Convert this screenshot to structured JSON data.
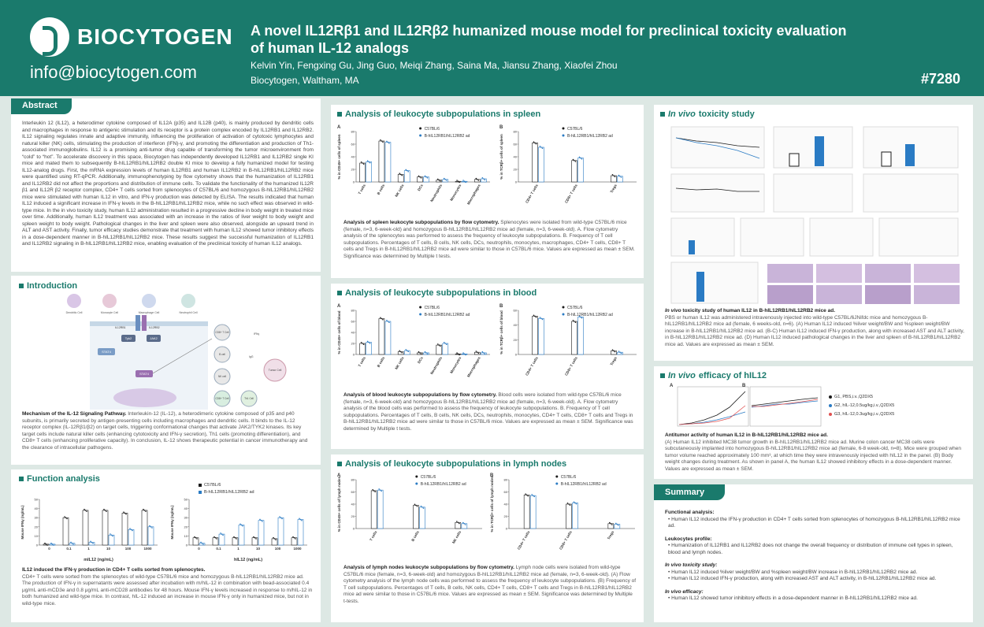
{
  "header": {
    "logo_text": "BIOCYTOGEN",
    "email": "info@biocytogen.com",
    "title": "A novel IL12Rβ1 and IL12Rβ2 humanized mouse model for preclinical toxicity evaluation of human IL-12 analogs",
    "authors": "Kelvin Yin, Fengxing Gu, Jing Guo, Meiqi Zhang, Saina Ma, Jiansu Zhang, Xiaofei Zhou",
    "affiliation": "Biocytogen, Waltham, MA",
    "poster_number": "#7280"
  },
  "colors": {
    "brand": "#1a7a6c",
    "wt": "#1a1a1a",
    "humanized": "#2a7bc4",
    "purple_tissue": "#c9b4d9"
  },
  "abstract": {
    "title": "Abstract",
    "text": "Interleukin 12 (IL12), a heterodimer cytokine composed of IL12A (p35) and IL12B (p40), is mainly produced by dendritic cells and macrophages in response to antigenic stimulation and its receptor is a protein complex encoded by IL12RB1 and IL12RB2. IL12 signaling regulates innate and adaptive immunity, influencing the proliferation of activation of cytotoxic lymphocytes and natural killer (NK) cells, stimulating the production of interferon (IFN)-γ, and promoting the differentiation and production of Th1-associated immunoglobulins. IL12 is a promising anti-tumor drug capable of transforming the tumor microenvironment from “cold” to “hot”. To accelerate discovery in this space, Biocytogen has independently developed IL12RB1 and IL12RB2 single KI mice and mated them to subsequently B-hIL12RB1/hIL12RB2 double KI mice to develop a fully humanized model for testing IL12-analog drugs. First, the mRNA expression levels of human IL12RB1 and human IL12RB2 in B-hIL12RB1/hIL12RB2 mice were quantified using RT-qPCR. Additionally, immunophenotyping by flow cytometry shows that the humanization of IL12RB1 and IL12RB2 did not affect the proportions and distribution of immune cells. To validate the functionality of the humanized IL12R β1 and IL12R β2 receptor complex, CD4+ T cells sorted from splenocytes of C57BL/6 and homozygous B-hIL12RB1/hIL12RB2 mice were stimulated with human IL12 in vitro, and IFN-γ production was detected by ELISA. The results indicated that human IL12 induced a significant increase in IFN-γ levels in the B-hIL12RB1/hIL12RB2 mice, while no such effect was observed in wild-type mice. In the in vivo toxicity study, human IL12 administration resulted in a progressive decline in body weight in treated mice over time. Additionally, human IL12 treatment was associated with an increase in the ratios of liver weight to body weight and spleen weight to body weight. Pathological changes in the liver and spleen were also observed, alongside an upward trend in ALT and AST activity. Finally, tumor efficacy studies demonstrate that treatment with human IL12 showed tumor inhibitory effects in a dose-dependent manner in B-hIL12RB1/hIL12RB2 mice. These results suggest the successful humanization of IL12RB1 and IL12RB2 signaling in B-hIL12RB1/hIL12RB2 mice, enabling evaluation of the preclinical toxicity of human IL12 analogs."
  },
  "introduction": {
    "title": "Introduction",
    "cells": [
      "Dendritic Cell",
      "Monocyte Cell",
      "Macrophage Cell",
      "Neutrophil Cell"
    ],
    "diagram_labels": [
      "IL12RB1",
      "IL12RB2",
      "Tyk2",
      "JAK2",
      "STAT4",
      "STAT4",
      "CD8+ T Cell",
      "B cell",
      "NK cell",
      "CD8+ T Cell",
      "Th1 Cell",
      "Tumor Cell",
      "IFNγ",
      "IgG"
    ],
    "caption_title": "Mechanism of the IL-12 Signaling Pathway.",
    "caption": " Interleukin-12 (IL-12), a heterodimeric cytokine composed of p35 and p40 subunits, is primarily secreted by antigen-presenting cells including macrophages and dendritic cells. It binds to the IL-12 receptor complex (IL-12Rβ1/β2) on target cells, triggering conformational changes that activate JAK2/TYK2 kinases. Its key target cells include natural killer cells (enhancing cytotoxicity and IFN-γ secretion), Th1 cells (promoting differentiation), and CD8+ T cells (enhancing proliferative capacity). In conclusion, IL-12 shows therapeutic potential in cancer immunotherapy and the clearance of intracellular pathogens."
  },
  "function": {
    "title": "Function analysis",
    "legend": [
      "C57BL/6",
      "B-hIL12RB1/hIL12RB2 ad"
    ],
    "ylabel": "Mouse IFNγ (ng/mL)",
    "xlabels": [
      "0",
      "0.1",
      "1",
      "10",
      "100",
      "1000"
    ],
    "chart_left_title": "mIL12 (ng/mL)",
    "chart_right_title": "hIL12 (ng/mL)",
    "caption_title": "IL12 induced the IFN-γ production in CD4+ T cells sorted from splenocytes.",
    "caption": "CD4+ T cells were sorted from the splenocytes of wild-type C57BL/6 mice and homozygous B-hIL12RB1/hIL12RB2 mice ad. The production of IFN-γ in supernatants were assessed after incubation with m/hIL-12 in combination with bead-associated 0.4 μg/mL anti-mCD3e and 0.8 μg/mL anti-mCD28 antibodies for 48 hours. Mouse IFN-γ levels increased in response to m/hIL-12 in both humanized and wild-type mice. In contrast, hIL-12 induced an increase in mouse IFN-γ only in humanized mice, but not in wild-type mice."
  },
  "spleen": {
    "title": "Analysis of leukocyte subpopulations in spleen",
    "caption_title": "Analysis of spleen leukocyte subpopulations by flow cytometry.",
    "caption": " Splenocytes were isolated from wild-type C57BL/6 mice (female, n=3, 6-week-old) and homozygous B-hIL12RB1/hIL12RB2 mice ad (female, n=3, 6-week-old). A. Flow cytometry analysis of the splenocytes was performed to assess the frequency of leukocyte subpopulations. B. Frequency of T cell subpopulations. Percentages of T cells, B cells, NK cells, DCs, neutrophils, monocytes, macrophages, CD4+ T cells, CD8+ T cells and Tregs in B-hIL12RB1/hIL12RB2 mice ad were similar to those in C57BL/6 mice. Values are expressed as mean ± SEM. Significance was determined by Multiple t tests."
  },
  "blood": {
    "title": "Analysis of leukocyte subpopulations in blood",
    "caption_title": "Analysis of blood leukocyte subpopulations by flow cytometry.",
    "caption": " Blood cells were isolated from wild-type C57BL/6 mice (female, n=3, 6-week-old) and homozygous B-hIL12RB1/hIL12RB2 mice ad (female, n=3, 6-week-old). A. Flow cytometry analysis of the blood cells was performed to assess the frequency of leukocyte subpopulations. B. Frequency of T cell subpopulations. Percentages of T cells, B cells, NK cells, DCs, neutrophils, monocytes, CD4+ T cells, CD8+ T cells and Tregs in B-hIL12RB1/hIL12RB2 mice ad were similar to those in C57BL/6 mice. Values are expressed as mean ± SEM. Significance was determined by Multiple t tests."
  },
  "lymph": {
    "title": "Analysis of leukocyte subpopulations in lymph nodes",
    "caption_title": "Analysis of lymph nodes leukocyte subpopulations by flow cytometry.",
    "caption": " Lymph node cells were isolated from wild-type C57BL/6 mice (female, n=3, 6-week-old) and homozygous B-hIL12RB1/hIL12RB2 mice ad (female, n=3, 6-week-old). (A) Flow cytometry analysis of the lymph node cells was performed to assess the frequency of leukocyte subpopulations. (B) Frequency of T cell subpopulations. Percentages of T cells, B cells, NK cells, CD4+ T cells, CD8+ T cells and Tregs in B-hIL12RB1/hIL12RB2 mice ad were similar to those in C57BL/6 mice. Values are expressed as mean ± SEM. Significance was determined by Multiple t-tests."
  },
  "toxicity": {
    "title_italic": "In vivo",
    "title_rest": " toxicity study",
    "caption_title_italic": "In vivo",
    "caption_title_rest": " toxicity study of human IL12 in B-hIL12RB1/hIL12RB2 mice ad.",
    "caption": "PBS or human IL12 was administered intravenously injected into wild-type C57BL/6JNifdc mice and homozygous B-hIL12RB1/hIL12RB2 mice ad (female, 6 weeks-old, n=6). (A) Human IL12 induced %liver weight/BW and %spleen weight/BW increase in B-hIL12RB1/hIL12RB2 mice ad. (B-C) Human IL12 induced IFN-γ production, along with increased AST and ALT activity, in B-hIL12RB1/hIL12RB2 mice ad. (D) Human IL12 induced pathological changes in the liver and spleen of B-hIL12RB1/hIL12RB2 mice ad. Values are expressed as mean ± SEM."
  },
  "efficacy": {
    "title_italic": "In vivo",
    "title_rest": " efficacy of hIL12",
    "legend": [
      "G1, PBS,i.v.,Q2DX5",
      "G2, hIL-12,0.5ug/kg,i.v.,Q2DX5",
      "G3, hIL-12,0.3ug/kg,i.v.,Q2DX5"
    ],
    "caption_title": "Antitumor activity of human IL12 in B-hIL12RB1/hIL12RB2 mice ad.",
    "caption": "(A) Human IL12 inhibited MC38 tumor growth in B-hIL12RB1/hIL12RB2 mice ad. Murine colon cancer MC38 cells were subcutaneously implanted into homozygous B-hIL12RB1/hIL12RB2 mice ad (female, 6-8 week-old, n=8). Mice were grouped when tumor volume reached approximately 100 mm³, at which time they were intravenously injected with hIL12 in the panel. (B) Body weight changes during treatment. As shown in panel A, the human IL12 showed inhibitory effects in a dose-dependent manner. Values are expressed as mean ± SEM."
  },
  "summary": {
    "title": "Summary",
    "sections": [
      {
        "heading": "Functional analysis:",
        "item": "Human IL12 induced the IFN-γ production in CD4+ T cells sorted from splenocytes of homozygous B-hIL12RB1/hIL12RB2 mice ad."
      },
      {
        "heading": "Leukocytes profile:",
        "item": "Humanization of IL12RB1 and IL12RB2 does not change the overall frequency or distribution of immune cell types in spleen, blood and lymph nodes."
      },
      {
        "heading": "In vivo toxicity study:",
        "item": "Human IL12 induced %liver weight/BW and %spleen weight/BW increase in B-hIL12RB1/hIL12RB2 mice ad.",
        "item2": "Human IL12 induced IFN-γ production, along with increased AST and ALT activity, in B-hIL12RB1/hIL12RB2 mice ad."
      },
      {
        "heading": "In vivo efficacy:",
        "item": "Human IL12 showed tumor inhibitory effects in a dose-dependent manner in B-hIL12RB1/hIL12RB2 mice ad."
      }
    ]
  },
  "chart_data": [
    {
      "id": "spleen_A",
      "type": "bar",
      "panel": "A",
      "ylabel": "% in CD45+ cells of spleen",
      "ylim": [
        0,
        80
      ],
      "yticks": [
        0,
        20,
        40,
        60,
        80
      ],
      "categories": [
        "T cells",
        "B cells",
        "NK cells",
        "DCs",
        "Neutrophils",
        "Monocytes",
        "Macrophages"
      ],
      "series": [
        {
          "name": "C57BL/6",
          "values": [
            30,
            65,
            12,
            8,
            3,
            1,
            4
          ]
        },
        {
          "name": "B-hIL12RB1/hIL12RB2 ad",
          "values": [
            32,
            63,
            18,
            8,
            4,
            1,
            5
          ]
        }
      ]
    },
    {
      "id": "spleen_B",
      "type": "bar",
      "panel": "B",
      "ylabel": "% in TCRβ+ cells of spleen",
      "ylim": [
        0,
        80
      ],
      "yticks": [
        0,
        20,
        40,
        60,
        80
      ],
      "categories": [
        "CD4+ T cells",
        "CD8+ T cells",
        "Tregs"
      ],
      "series": [
        {
          "name": "C57BL/6",
          "values": [
            62,
            34,
            10
          ]
        },
        {
          "name": "B-hIL12RB1/hIL12RB2 ad",
          "values": [
            55,
            38,
            9
          ]
        }
      ]
    },
    {
      "id": "blood_A",
      "type": "bar",
      "panel": "A",
      "ylabel": "% in CD45+ cells of blood",
      "ylim": [
        0,
        80
      ],
      "yticks": [
        0,
        20,
        40,
        60,
        80
      ],
      "categories": [
        "T cells",
        "B cells",
        "NK cells",
        "DCs",
        "Neutrophils",
        "Monocytes",
        "Macrophages"
      ],
      "series": [
        {
          "name": "C57BL/6",
          "values": [
            20,
            65,
            5,
            3,
            17,
            1,
            4
          ]
        },
        {
          "name": "B-hIL12RB1/hIL12RB2 ad",
          "values": [
            22,
            60,
            7,
            3,
            20,
            1,
            3
          ]
        }
      ]
    },
    {
      "id": "blood_B",
      "type": "bar",
      "panel": "B",
      "ylabel": "% in TCRβ+ cells of blood",
      "ylim": [
        0,
        60
      ],
      "yticks": [
        0,
        20,
        40,
        60
      ],
      "categories": [
        "CD4+ T cells",
        "CD8+ T cells",
        "Tregs"
      ],
      "series": [
        {
          "name": "C57BL/6",
          "values": [
            52,
            45,
            5
          ]
        },
        {
          "name": "B-hIL12RB1/hIL12RB2 ad",
          "values": [
            49,
            51,
            3
          ]
        }
      ]
    },
    {
      "id": "lymph_A",
      "type": "bar",
      "panel": "A",
      "ylabel": "% in CD45+ cells of lymph nodes",
      "ylim": [
        0,
        80
      ],
      "yticks": [
        0,
        20,
        40,
        60,
        80
      ],
      "categories": [
        "T cells",
        "B cells",
        "NK cells"
      ],
      "series": [
        {
          "name": "C57BL/6",
          "values": [
            62,
            38,
            10
          ]
        },
        {
          "name": "B-hIL12RB1/hIL12RB2 ad",
          "values": [
            63,
            35,
            8
          ]
        }
      ]
    },
    {
      "id": "lymph_B",
      "type": "bar",
      "panel": "B",
      "ylabel": "% in TCRβ+ cells of lymph nodes",
      "ylim": [
        0,
        80
      ],
      "yticks": [
        0,
        20,
        40,
        60,
        80
      ],
      "categories": [
        "CD4+ T cells",
        "CD8+ T cells",
        "Tregs"
      ],
      "series": [
        {
          "name": "C57BL/6",
          "values": [
            55,
            40,
            8
          ]
        },
        {
          "name": "B-hIL12RB1/hIL12RB2 ad",
          "values": [
            54,
            42,
            7
          ]
        }
      ]
    },
    {
      "id": "func_m",
      "type": "bar",
      "ylabel": "Mouse IFNγ (ng/mL)",
      "xlabel": "mIL12 (ng/mL)",
      "ylim": [
        0,
        50
      ],
      "yticks": [
        0,
        10,
        20,
        30,
        40,
        50
      ],
      "categories": [
        "0",
        "0.1",
        "1",
        "10",
        "100",
        "1000"
      ],
      "series": [
        {
          "name": "C57BL/6",
          "values": [
            1,
            30,
            38,
            38,
            35,
            38
          ]
        },
        {
          "name": "B-hIL12RB1/hIL12RB2 ad",
          "values": [
            1,
            2,
            3,
            11,
            17,
            20
          ]
        }
      ]
    },
    {
      "id": "func_h",
      "type": "bar",
      "ylabel": "Mouse IFNγ (ng/mL)",
      "xlabel": "hIL12 (ng/mL)",
      "ylim": [
        0,
        50
      ],
      "yticks": [
        0,
        10,
        20,
        30,
        40,
        50
      ],
      "categories": [
        "0",
        "0.1",
        "1",
        "10",
        "100",
        "1000"
      ],
      "series": [
        {
          "name": "C57BL/6",
          "values": [
            8,
            8,
            8,
            8,
            7,
            8
          ]
        },
        {
          "name": "B-hIL12RB1/hIL12RB2 ad",
          "values": [
            2,
            12,
            22,
            27,
            30,
            28
          ]
        }
      ]
    }
  ]
}
